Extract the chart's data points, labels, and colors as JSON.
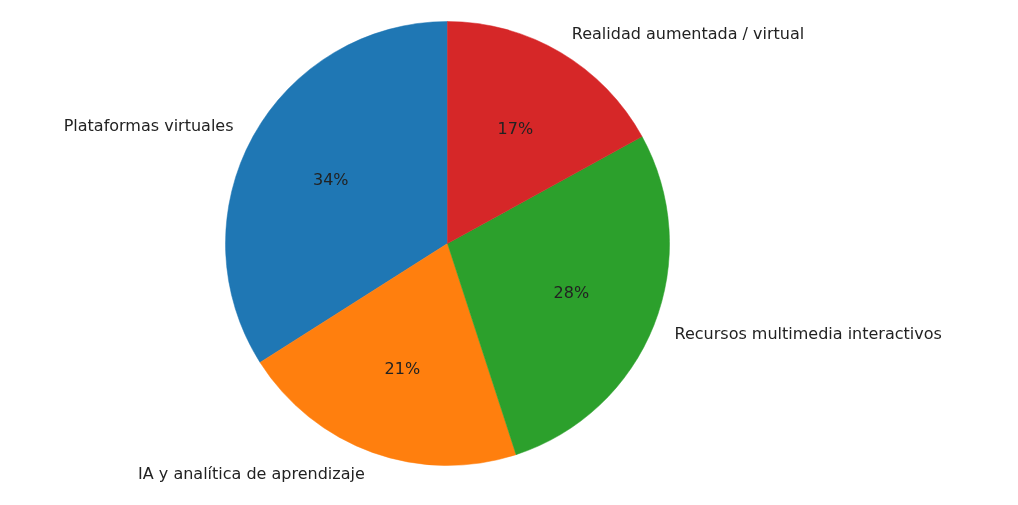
{
  "chart_data": {
    "type": "pie",
    "categories": [
      "Plataformas virtuales",
      "IA y analítica de aprendizaje",
      "Recursos multimedia interactivos",
      "Realidad aumentada / virtual"
    ],
    "values": [
      34,
      21,
      28,
      17
    ],
    "colors": [
      "#1f77b4",
      "#ff7f0e",
      "#2ca02c",
      "#d62728"
    ],
    "value_labels": [
      "34%",
      "21%",
      "28%",
      "17%"
    ]
  }
}
